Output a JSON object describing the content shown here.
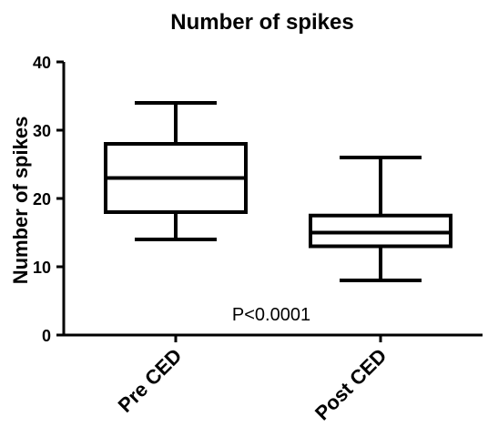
{
  "chart_data": {
    "type": "box",
    "title": "Number of spikes",
    "xlabel": "",
    "ylabel": "Number of spikes",
    "ylim": [
      0,
      40
    ],
    "yticks": [
      0,
      10,
      20,
      30,
      40
    ],
    "categories": [
      "Pre CED",
      "Post CED"
    ],
    "boxes": [
      {
        "category": "Pre CED",
        "min": 14,
        "q1": 18,
        "median": 23,
        "q3": 28,
        "max": 34
      },
      {
        "category": "Post CED",
        "min": 8,
        "q1": 13,
        "median": 15,
        "q3": 17.5,
        "max": 26
      }
    ],
    "annotations": [
      "P<0.0001"
    ],
    "grid": false,
    "colors": {
      "stroke": "#000000",
      "fill": "#ffffff"
    }
  }
}
